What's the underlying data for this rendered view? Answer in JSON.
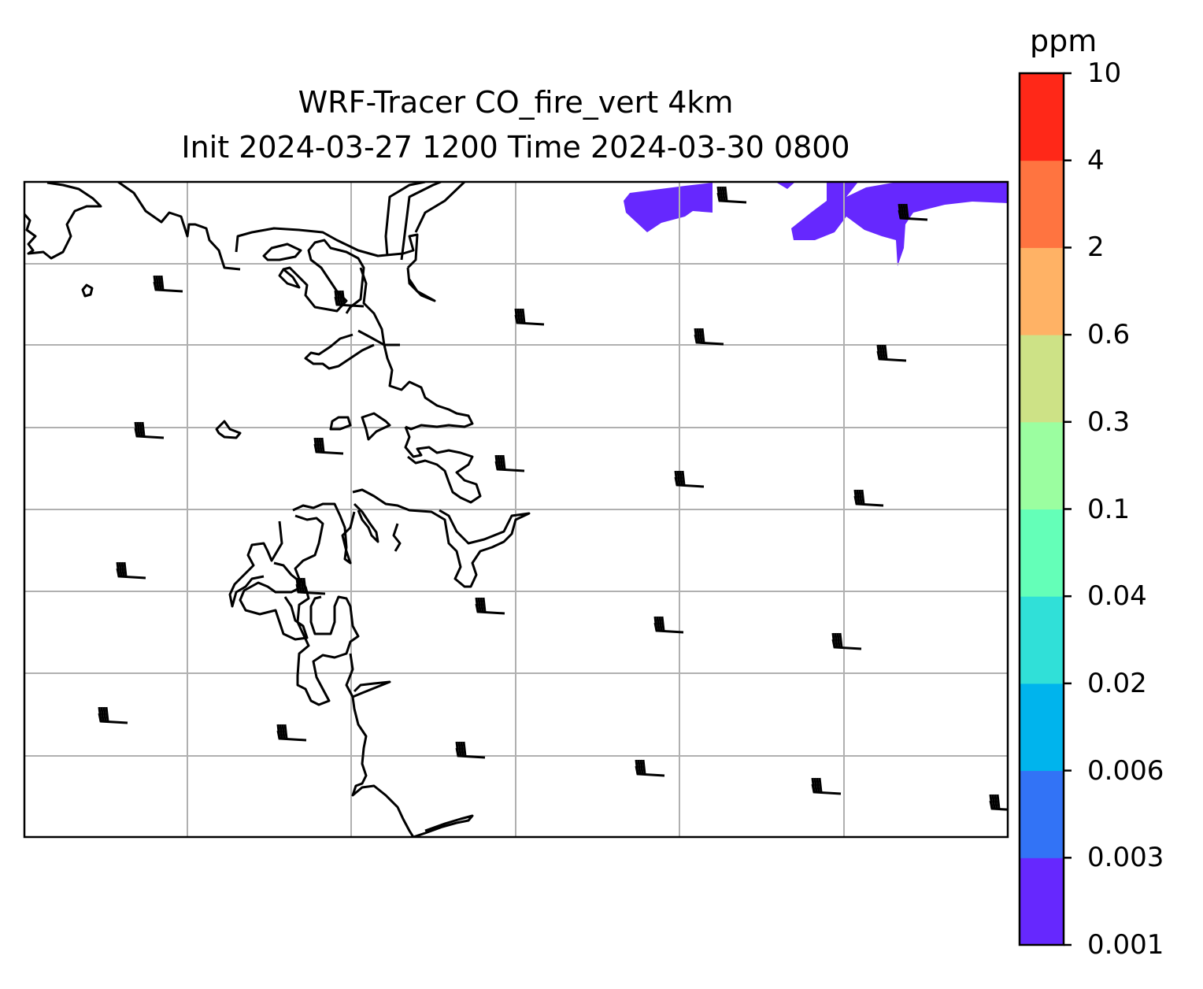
{
  "title": {
    "line1": "WRF-Tracer CO_fire_vert 4km",
    "line2": "Init 2024-03-27 1200 Time 2024-03-30 0800"
  },
  "colorbar": {
    "unit": "ppm",
    "ticks": [
      "0.001",
      "0.003",
      "0.006",
      "0.02",
      "0.04",
      "0.1",
      "0.3",
      "0.6",
      "2",
      "4",
      "10"
    ],
    "colors": [
      "#6628fe",
      "#3273f6",
      "#00b4ed",
      "#30e0d8",
      "#64ffb8",
      "#9bfea0",
      "#cde286",
      "#ffb265",
      "#ff7440",
      "#ff2818"
    ]
  },
  "map": {
    "plume_color": "#6628fe",
    "gridline_color": "#b0b0b0",
    "coastline_color": "#000000"
  }
}
